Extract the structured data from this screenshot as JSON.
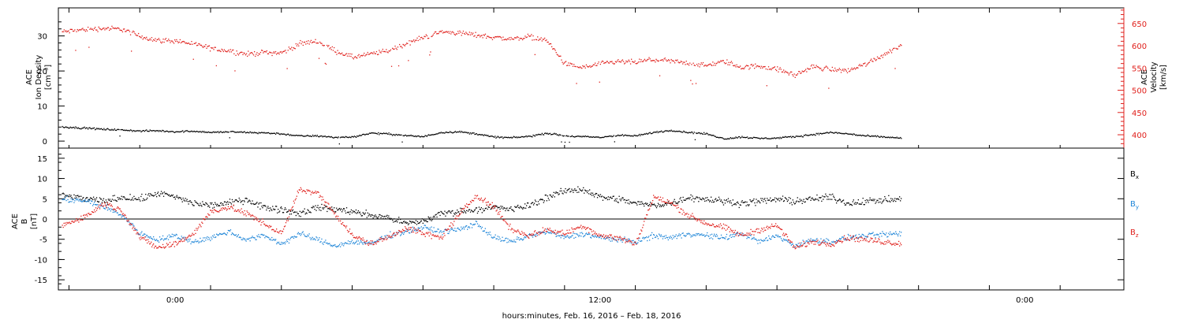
{
  "xlabel": "hours:minutes, Feb. 16, 2016 – Feb. 18, 2016",
  "x_ticks": [
    "0:00",
    "12:00",
    "0:00"
  ],
  "colors": {
    "black": "#000000",
    "red": "#e0201c",
    "blue": "#1f86d8"
  },
  "chart_data": [
    {
      "type": "scatter",
      "panel": "top",
      "ylabel": [
        "ACE",
        "Ion Density",
        "[cm⁻³]"
      ],
      "y2label": [
        "ACE",
        "Velocity",
        "[km/s]"
      ],
      "ylim": [
        -2,
        38
      ],
      "y_ticks": [
        0,
        10,
        20,
        30
      ],
      "y2lim": [
        370,
        685
      ],
      "y2_ticks": [
        400,
        450,
        500,
        550,
        600,
        650
      ],
      "xlim_hours": [
        -3.3,
        26.8
      ],
      "series": [
        {
          "color": "red",
          "axis": "right",
          "x": [
            -3.2,
            -2.5,
            -2.0,
            -1.5,
            -1.0,
            -0.5,
            0.0,
            0.5,
            1.0,
            1.5,
            2.0,
            2.5,
            3.0,
            3.5,
            4.0,
            4.5,
            5.0,
            5.5,
            6.0,
            6.5,
            7.0,
            7.5,
            8.0,
            8.5,
            9.0,
            9.5,
            10.0,
            10.5,
            11.0,
            11.5,
            12.0,
            12.5,
            13.0,
            13.5,
            14.0,
            14.5,
            15.0,
            15.5,
            16.0,
            16.5,
            17.0,
            17.5,
            18.0,
            18.5,
            19.0,
            19.5,
            20.5
          ],
          "y": [
            632,
            638,
            640,
            638,
            622,
            613,
            612,
            605,
            595,
            590,
            582,
            586,
            585,
            605,
            612,
            590,
            575,
            582,
            590,
            605,
            620,
            632,
            630,
            625,
            620,
            616,
            622,
            612,
            560,
            552,
            560,
            565,
            564,
            570,
            566,
            562,
            556,
            566,
            552,
            556,
            548,
            535,
            554,
            548,
            545,
            560,
            602
          ],
          "spread": 14
        },
        {
          "color": "black",
          "axis": "left",
          "x": [
            -3.2,
            -2.5,
            -2.0,
            -1.5,
            -1.0,
            -0.5,
            0.0,
            0.5,
            1.0,
            1.5,
            2.0,
            2.5,
            3.0,
            3.5,
            4.0,
            4.5,
            5.0,
            5.5,
            6.0,
            6.5,
            7.0,
            7.5,
            8.0,
            8.5,
            9.0,
            9.5,
            10.0,
            10.5,
            11.0,
            11.5,
            12.0,
            12.5,
            13.0,
            13.5,
            14.0,
            14.5,
            15.0,
            15.5,
            16.0,
            16.5,
            17.0,
            17.5,
            18.0,
            18.5,
            19.0,
            19.5,
            20.5
          ],
          "y": [
            4.2,
            3.8,
            3.5,
            3.3,
            3.0,
            3.1,
            2.8,
            3.0,
            2.6,
            2.8,
            2.6,
            2.5,
            2.2,
            1.6,
            1.6,
            1.2,
            1.3,
            2.4,
            2.2,
            1.7,
            1.4,
            2.6,
            2.8,
            2.2,
            1.3,
            1.1,
            1.5,
            2.4,
            1.6,
            1.4,
            1.2,
            1.8,
            1.6,
            2.6,
            3.2,
            2.6,
            2.2,
            0.8,
            1.3,
            0.9,
            1.0,
            1.4,
            2.0,
            2.6,
            2.2,
            1.6,
            1.0
          ],
          "spread": 0.6
        }
      ]
    },
    {
      "type": "scatter",
      "panel": "bottom",
      "ylabel": [
        "ACE",
        "B",
        "[nT]"
      ],
      "ylim": [
        -17.5,
        17.5
      ],
      "y_ticks": [
        -15,
        -10,
        -5,
        0,
        5,
        10,
        15
      ],
      "zero_line": true,
      "legend": [
        {
          "name": "Bx",
          "color": "black"
        },
        {
          "name": "By",
          "color": "blue"
        },
        {
          "name": "Bz",
          "color": "red"
        }
      ],
      "series": [
        {
          "name": "Bx",
          "color": "black",
          "x": [
            -3.2,
            -2.5,
            -2.0,
            -1.5,
            -1.0,
            -0.5,
            0.0,
            0.5,
            1.0,
            1.5,
            2.0,
            2.5,
            3.0,
            3.5,
            4.0,
            4.5,
            5.0,
            5.5,
            6.0,
            6.5,
            7.0,
            7.5,
            8.0,
            8.5,
            9.0,
            9.5,
            10.0,
            10.5,
            11.0,
            11.5,
            12.0,
            12.5,
            13.0,
            13.5,
            14.0,
            14.5,
            15.0,
            15.5,
            16.0,
            16.5,
            17.0,
            17.5,
            18.0,
            18.5,
            19.0,
            19.5,
            20.5
          ],
          "y": [
            6.0,
            5.0,
            4.5,
            5.5,
            5.0,
            6.5,
            5.5,
            4.0,
            3.5,
            4.0,
            5.0,
            3.0,
            2.5,
            1.5,
            3.0,
            2.5,
            2.0,
            1.0,
            0.5,
            -1.0,
            -0.5,
            1.5,
            2.0,
            2.5,
            3.0,
            2.5,
            3.5,
            5.5,
            7.0,
            7.5,
            5.5,
            5.0,
            4.0,
            3.5,
            4.0,
            5.5,
            5.0,
            4.5,
            4.0,
            4.5,
            5.0,
            4.5,
            5.0,
            5.5,
            4.0,
            4.5,
            5.0
          ],
          "spread": 2.2
        },
        {
          "name": "By",
          "color": "blue",
          "x": [
            -3.2,
            -2.5,
            -2.0,
            -1.5,
            -1.0,
            -0.5,
            0.0,
            0.5,
            1.0,
            1.5,
            2.0,
            2.5,
            3.0,
            3.5,
            4.0,
            4.5,
            5.0,
            5.5,
            6.0,
            6.5,
            7.0,
            7.5,
            8.0,
            8.5,
            9.0,
            9.5,
            10.0,
            10.5,
            11.0,
            11.5,
            12.0,
            12.5,
            13.0,
            13.5,
            14.0,
            14.5,
            15.0,
            15.5,
            16.0,
            16.5,
            17.0,
            17.5,
            18.0,
            18.5,
            19.0,
            19.5,
            20.5
          ],
          "y": [
            5.0,
            4.5,
            3.0,
            1.0,
            -3.5,
            -5.0,
            -4.0,
            -5.5,
            -4.5,
            -3.0,
            -5.0,
            -4.0,
            -6.0,
            -3.5,
            -5.0,
            -6.5,
            -5.5,
            -6.0,
            -4.0,
            -3.0,
            -2.0,
            -3.0,
            -2.5,
            -1.0,
            -4.5,
            -5.5,
            -4.0,
            -3.0,
            -4.5,
            -3.5,
            -4.5,
            -5.0,
            -5.5,
            -4.0,
            -4.5,
            -3.5,
            -4.0,
            -4.5,
            -3.5,
            -5.5,
            -4.0,
            -6.5,
            -5.0,
            -5.5,
            -4.5,
            -4.0,
            -3.5
          ],
          "spread": 1.8
        },
        {
          "name": "Bz",
          "color": "red",
          "x": [
            -3.2,
            -2.5,
            -2.0,
            -1.5,
            -1.0,
            -0.5,
            0.0,
            0.5,
            1.0,
            1.5,
            2.0,
            2.5,
            3.0,
            3.5,
            4.0,
            4.5,
            5.0,
            5.5,
            6.0,
            6.5,
            7.0,
            7.5,
            8.0,
            8.5,
            9.0,
            9.5,
            10.0,
            10.5,
            11.0,
            11.5,
            12.0,
            12.5,
            13.0,
            13.5,
            14.0,
            14.5,
            15.0,
            15.5,
            16.0,
            16.5,
            17.0,
            17.5,
            18.0,
            18.5,
            19.0,
            19.5,
            20.5
          ],
          "y": [
            -1.5,
            1.0,
            4.0,
            2.0,
            -4.5,
            -7.0,
            -6.0,
            -3.5,
            2.0,
            3.0,
            1.5,
            -1.0,
            -3.5,
            7.5,
            6.5,
            1.5,
            -4.0,
            -6.0,
            -4.5,
            -2.0,
            -3.5,
            -4.5,
            1.0,
            6.0,
            3.0,
            -2.5,
            -4.0,
            -2.5,
            -3.5,
            -1.5,
            -4.0,
            -4.5,
            -6.0,
            5.5,
            4.0,
            1.0,
            -1.0,
            -2.0,
            -4.0,
            -2.5,
            -1.5,
            -7.0,
            -5.5,
            -6.0,
            -4.5,
            -5.0,
            -6.0
          ],
          "spread": 2.0
        }
      ]
    }
  ]
}
